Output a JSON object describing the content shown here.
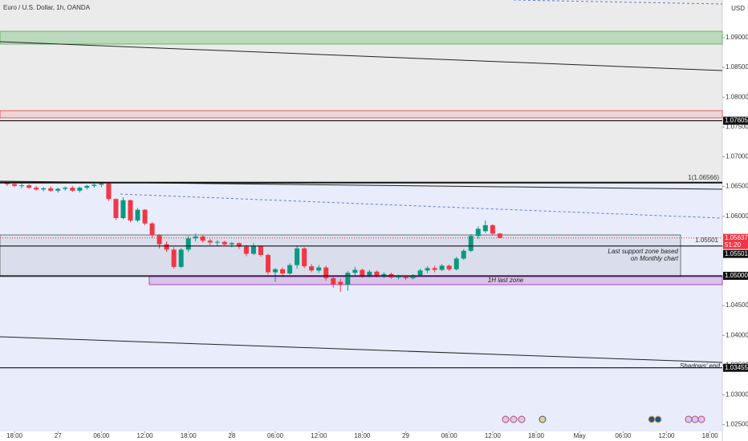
{
  "chart_data": {
    "type": "candlestick",
    "title": "Euro / U.S. Dollar, 1h, OANDA",
    "currency": "USD",
    "up_color": "#089981",
    "down_color": "#f23645",
    "x": [
      -1,
      0,
      1,
      2,
      3,
      4,
      5,
      6,
      7,
      8,
      9,
      10,
      11,
      12,
      13,
      14,
      15,
      16,
      17,
      18,
      19,
      20,
      21,
      22,
      23,
      24,
      25,
      26,
      27,
      28,
      29,
      30,
      31,
      32,
      33,
      34,
      35,
      36,
      37,
      38,
      39,
      40,
      41,
      42,
      43,
      44,
      45,
      46,
      47,
      48,
      49,
      50,
      51,
      52,
      53,
      54,
      55,
      56,
      57,
      58,
      59,
      60,
      61,
      62,
      63,
      64,
      65,
      66,
      67
    ],
    "open": [
      1.0656,
      1.0654,
      1.0651,
      1.0652,
      1.0648,
      1.0645,
      1.0647,
      1.0643,
      1.0646,
      1.0648,
      1.0643,
      1.0648,
      1.0651,
      1.0653,
      1.0655,
      1.0629,
      1.0597,
      1.0627,
      1.0593,
      1.0611,
      1.0588,
      1.0568,
      1.0553,
      1.0544,
      1.0515,
      1.0544,
      1.0563,
      1.0566,
      1.0559,
      1.0556,
      1.0557,
      1.0553,
      1.0555,
      1.0549,
      1.0537,
      1.055,
      1.0535,
      1.0506,
      1.0511,
      1.0504,
      1.0518,
      1.0546,
      1.0516,
      1.0509,
      1.0514,
      1.0496,
      1.049,
      1.0485,
      1.0505,
      1.051,
      1.05,
      1.0507,
      1.0499,
      1.0503,
      1.0497,
      1.0499,
      1.0496,
      1.0501,
      1.0509,
      1.0513,
      1.051,
      1.0517,
      1.0511,
      1.0529,
      1.0542,
      1.0567,
      1.0575,
      1.0585,
      1.0571
    ],
    "high": [
      1.066,
      1.0657,
      1.0655,
      1.0654,
      1.0651,
      1.0649,
      1.065,
      1.0648,
      1.065,
      1.0651,
      1.065,
      1.0653,
      1.0655,
      1.0657,
      1.0656,
      1.063,
      1.0632,
      1.0628,
      1.0614,
      1.0612,
      1.059,
      1.057,
      1.0558,
      1.0548,
      1.0547,
      1.0567,
      1.0571,
      1.0568,
      1.0562,
      1.056,
      1.0559,
      1.0557,
      1.0556,
      1.0552,
      1.0555,
      1.0551,
      1.0537,
      1.0513,
      1.0514,
      1.0521,
      1.055,
      1.0548,
      1.052,
      1.0518,
      1.0517,
      1.0498,
      1.0495,
      1.0508,
      1.0515,
      1.0512,
      1.051,
      1.0509,
      1.0506,
      1.0505,
      1.0502,
      1.0501,
      1.0503,
      1.0512,
      1.0516,
      1.0517,
      1.052,
      1.0519,
      1.0532,
      1.0545,
      1.057,
      1.0583,
      1.0593,
      1.0587,
      1.0572
    ],
    "low": [
      1.0651,
      1.0649,
      1.0647,
      1.0646,
      1.0643,
      1.0642,
      1.0641,
      1.064,
      1.0643,
      1.0641,
      1.064,
      1.0645,
      1.0648,
      1.0649,
      1.0626,
      1.0594,
      1.0595,
      1.059,
      1.059,
      1.0585,
      1.0564,
      1.0546,
      1.054,
      1.0512,
      1.0513,
      1.054,
      1.0558,
      1.0556,
      1.0551,
      1.055,
      1.0551,
      1.0548,
      1.0545,
      1.0533,
      1.0535,
      1.0532,
      1.0502,
      1.049,
      1.05,
      1.0502,
      1.0512,
      1.0513,
      1.0506,
      1.0505,
      1.0492,
      1.048,
      1.0473,
      1.0475,
      1.05,
      1.0496,
      1.0497,
      1.0497,
      1.0496,
      1.0495,
      1.0494,
      1.0493,
      1.0494,
      1.0499,
      1.0505,
      1.0506,
      1.0508,
      1.0508,
      1.0509,
      1.0527,
      1.054,
      1.0562,
      1.0572,
      1.0568,
      1.0563
    ],
    "close": [
      1.0654,
      1.0651,
      1.0652,
      1.0648,
      1.0645,
      1.0647,
      1.0643,
      1.0646,
      1.0648,
      1.0643,
      1.0648,
      1.0651,
      1.0653,
      1.0655,
      1.0629,
      1.0597,
      1.0627,
      1.0593,
      1.0611,
      1.0588,
      1.0568,
      1.0553,
      1.0544,
      1.0515,
      1.0544,
      1.0563,
      1.0566,
      1.0559,
      1.0556,
      1.0557,
      1.0553,
      1.0555,
      1.0549,
      1.0537,
      1.055,
      1.0535,
      1.0506,
      1.0511,
      1.0504,
      1.0518,
      1.0546,
      1.0516,
      1.0509,
      1.0514,
      1.0496,
      1.0486,
      1.0485,
      1.0505,
      1.051,
      1.05,
      1.0507,
      1.0499,
      1.0503,
      1.0497,
      1.0499,
      1.0496,
      1.0501,
      1.0509,
      1.0513,
      1.051,
      1.0517,
      1.0511,
      1.0529,
      1.0542,
      1.0567,
      1.0579,
      1.0585,
      1.0571,
      1.05637
    ],
    "xlim": [
      -2,
      97.7
    ],
    "xticks": [
      {
        "value": 0,
        "label": "18:00"
      },
      {
        "value": 6,
        "label": "27"
      },
      {
        "value": 12,
        "label": "06:00"
      },
      {
        "value": 18,
        "label": "12:00"
      },
      {
        "value": 24,
        "label": "18:00"
      },
      {
        "value": 30,
        "label": "28"
      },
      {
        "value": 36,
        "label": "06:00"
      },
      {
        "value": 42,
        "label": "12:00"
      },
      {
        "value": 48,
        "label": "18:00"
      },
      {
        "value": 54,
        "label": "29"
      },
      {
        "value": 60,
        "label": "06:00"
      },
      {
        "value": 66,
        "label": "12:00"
      },
      {
        "value": 72,
        "label": "18:00"
      },
      {
        "value": 78,
        "label": "May"
      },
      {
        "value": 84,
        "label": "06:00"
      },
      {
        "value": 90,
        "label": "12:00"
      },
      {
        "value": 96,
        "label": "18:00"
      }
    ],
    "ylim": [
      1.02387,
      1.09633
    ],
    "yticks": [
      {
        "value": 1.09,
        "label": "1.09000"
      },
      {
        "value": 1.085,
        "label": "1.08500"
      },
      {
        "value": 1.08,
        "label": "1.08000"
      },
      {
        "value": 1.075,
        "label": "1.07500"
      },
      {
        "value": 1.07,
        "label": "1.07000"
      },
      {
        "value": 1.065,
        "label": "1.06500"
      },
      {
        "value": 1.06,
        "label": "1.06000"
      },
      {
        "value": 1.055,
        "label": "1.05500"
      },
      {
        "value": 1.05,
        "label": "1.05000"
      },
      {
        "value": 1.045,
        "label": "1.04500"
      },
      {
        "value": 1.04,
        "label": "1.04000"
      },
      {
        "value": 1.035,
        "label": "1.03500"
      },
      {
        "value": 1.03,
        "label": "1.03000"
      },
      {
        "value": 1.025,
        "label": "1.02500"
      }
    ],
    "last_price": 1.05637,
    "countdown": "51:20",
    "levels": [
      1.07605,
      1.05501,
      {
        "value": 1.05,
        "label": "1.05000"
      },
      1.03455
    ],
    "fib": {
      "value": 1.06566,
      "label": "1(1.06566)"
    },
    "annotations": [
      "Last support zone based",
      "on Monthly chart",
      "1H last zone",
      "Shadows' end"
    ]
  }
}
